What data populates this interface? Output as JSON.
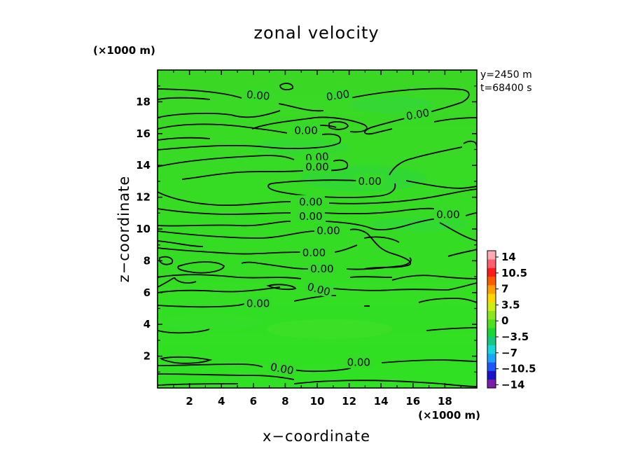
{
  "chart_data": {
    "type": "heatmap",
    "title": "zonal velocity",
    "xlabel": "x−coordinate",
    "ylabel": "z−coordinate",
    "x_unit_label": "(×1000 m)",
    "z_unit_label": "(×1000 m)",
    "xlim": [
      0,
      20
    ],
    "ylim": [
      0,
      20
    ],
    "xticks": [
      "2",
      "4",
      "6",
      "8",
      "10",
      "12",
      "14",
      "16",
      "18"
    ],
    "yticks": [
      "2",
      "4",
      "6",
      "8",
      "10",
      "12",
      "14",
      "16",
      "18"
    ],
    "info": [
      "y=2450 m",
      "t=68400 s"
    ],
    "fill_color": "#33dd22",
    "contour_level": 0.0,
    "contour_labels": [
      {
        "text": "0.00",
        "x": 6.3,
        "z": 18.4,
        "angle": 5
      },
      {
        "text": "0.00",
        "x": 11.3,
        "z": 18.4,
        "angle": -8
      },
      {
        "text": "0.00",
        "x": 16.3,
        "z": 17.2,
        "angle": -10
      },
      {
        "text": "0.00",
        "x": 9.3,
        "z": 16.2,
        "angle": 0
      },
      {
        "text": "0.00",
        "x": 10.0,
        "z": 14.5,
        "angle": -5
      },
      {
        "text": "0.00",
        "x": 10.0,
        "z": 13.9,
        "angle": 0
      },
      {
        "text": "0.00",
        "x": 13.3,
        "z": 13.0,
        "angle": 0
      },
      {
        "text": "0.00",
        "x": 9.6,
        "z": 11.7,
        "angle": 0
      },
      {
        "text": "0.00",
        "x": 9.6,
        "z": 10.8,
        "angle": 0
      },
      {
        "text": "0.00",
        "x": 10.7,
        "z": 9.9,
        "angle": 0
      },
      {
        "text": "0.00",
        "x": 18.2,
        "z": 10.9,
        "angle": 0
      },
      {
        "text": "0.00",
        "x": 9.8,
        "z": 8.5,
        "angle": 0
      },
      {
        "text": "0.00",
        "x": 10.3,
        "z": 7.5,
        "angle": 0
      },
      {
        "text": "0.00",
        "x": 10.1,
        "z": 6.2,
        "angle": 15
      },
      {
        "text": "0.00",
        "x": 6.3,
        "z": 5.3,
        "angle": 0
      },
      {
        "text": "0.00",
        "x": 7.8,
        "z": 1.2,
        "angle": 10
      },
      {
        "text": "0.00",
        "x": 12.6,
        "z": 1.6,
        "angle": 0
      }
    ],
    "colorbar": {
      "labels": [
        "14",
        "10.5",
        "7",
        "3.5",
        "0",
        "−3.5",
        "−7",
        "−10.5",
        "−14"
      ],
      "colors": [
        "#7a1ea8",
        "#1a10c8",
        "#1f55ff",
        "#1aa6ff",
        "#16d8d8",
        "#14c880",
        "#19d836",
        "#4ce020",
        "#8ce61c",
        "#ccee12",
        "#ffd600",
        "#ff9e00",
        "#ff5a00",
        "#ff1a1a",
        "#ff5e6e",
        "#ffaab4"
      ]
    }
  }
}
